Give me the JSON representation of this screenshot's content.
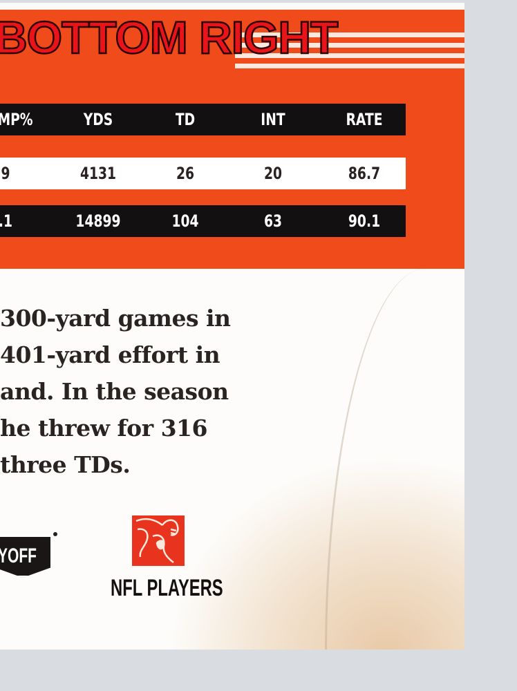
{
  "overlay_label": "BOTTOM RIGHT",
  "stats": {
    "headers": [
      "MP%",
      "YDS",
      "TD",
      "INT",
      "RATE"
    ],
    "rows": [
      [
        "9",
        "4131",
        "26",
        "20",
        "86.7"
      ],
      [
        ".1",
        "14899",
        "104",
        "63",
        "90.1"
      ]
    ]
  },
  "bio_lines": [
    "300-yard games in",
    "401-yard effort in",
    "and. In the season",
    "he threw for 316",
    "three TDs."
  ],
  "logos": {
    "playoff_fragment": "YOFF",
    "nfl_players": "NFL PLAYERS"
  },
  "colors": {
    "card_orange": "#f04b1b",
    "overlay_red": "#e8141a",
    "logo_red": "#e8341e"
  }
}
